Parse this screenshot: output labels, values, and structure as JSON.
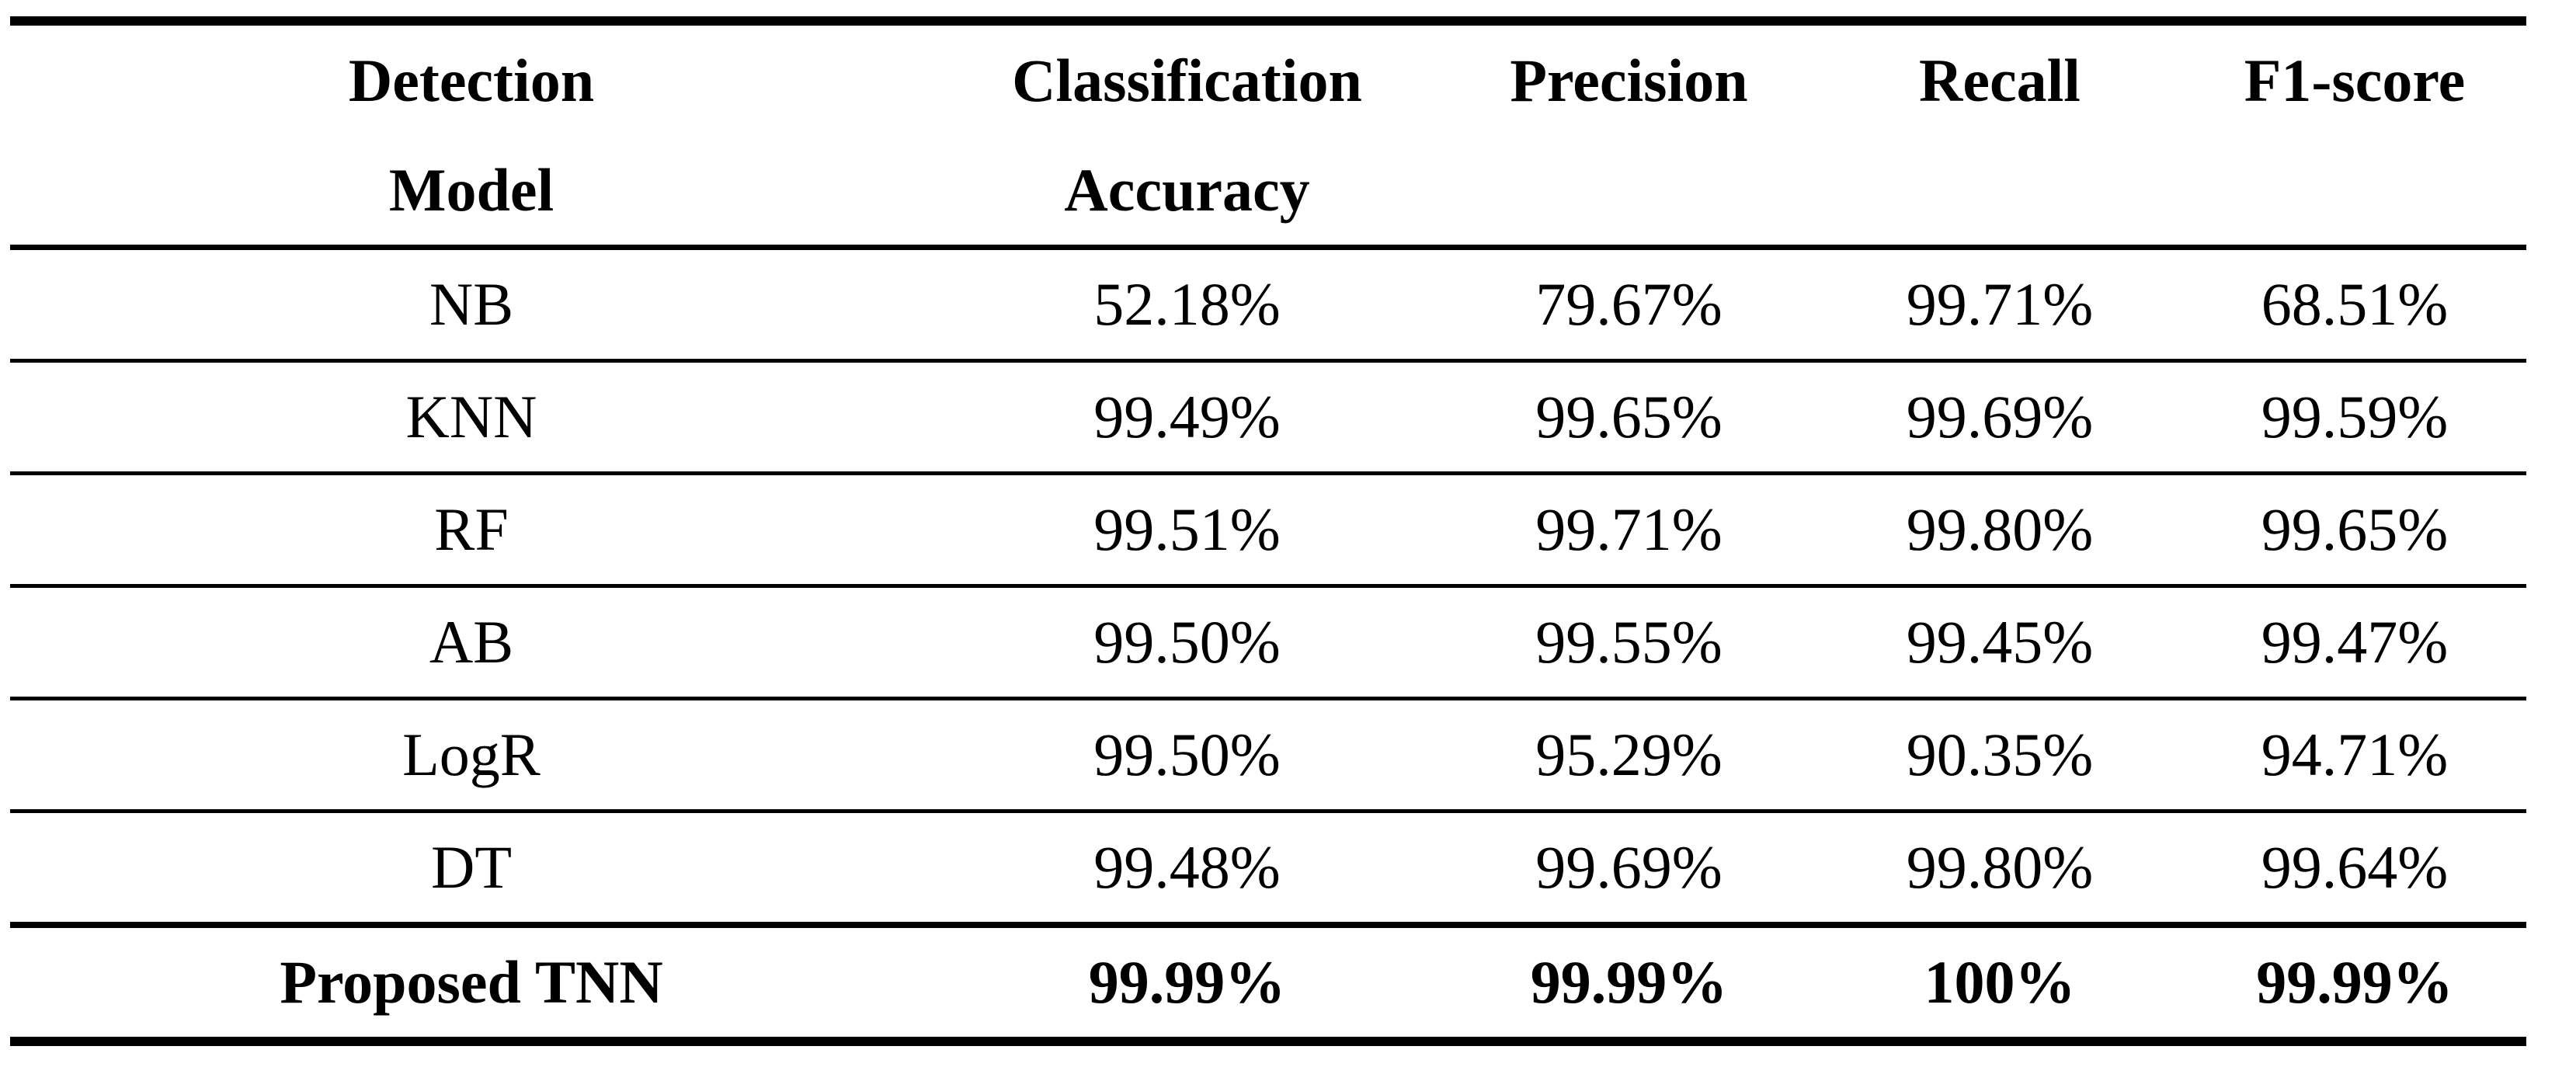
{
  "colors": {
    "text": "#000000",
    "rule": "#000000",
    "background": "#ffffff"
  },
  "table": {
    "header": [
      {
        "line1": "Detection",
        "line2": "Model"
      },
      {
        "line1": "Classification",
        "line2": "Accuracy"
      },
      {
        "line1": "Precision",
        "line2": ""
      },
      {
        "line1": "Recall",
        "line2": ""
      },
      {
        "line1": "F1-score",
        "line2": ""
      }
    ],
    "rows": [
      {
        "cells": [
          "NB",
          "52.18%",
          "79.67%",
          "99.71%",
          "68.51%"
        ]
      },
      {
        "cells": [
          "KNN",
          "99.49%",
          "99.65%",
          "99.69%",
          "99.59%"
        ]
      },
      {
        "cells": [
          "RF",
          "99.51%",
          "99.71%",
          "99.80%",
          "99.65%"
        ]
      },
      {
        "cells": [
          "AB",
          "99.50%",
          "99.55%",
          "99.45%",
          "99.47%"
        ]
      },
      {
        "cells": [
          "LogR",
          "99.50%",
          "95.29%",
          "90.35%",
          "94.71%"
        ]
      },
      {
        "cells": [
          "DT",
          "99.48%",
          "99.69%",
          "99.80%",
          "99.64%"
        ]
      },
      {
        "cells": [
          "Proposed TNN",
          "99.99%",
          "99.99%",
          "100%",
          "99.99%"
        ]
      }
    ]
  }
}
